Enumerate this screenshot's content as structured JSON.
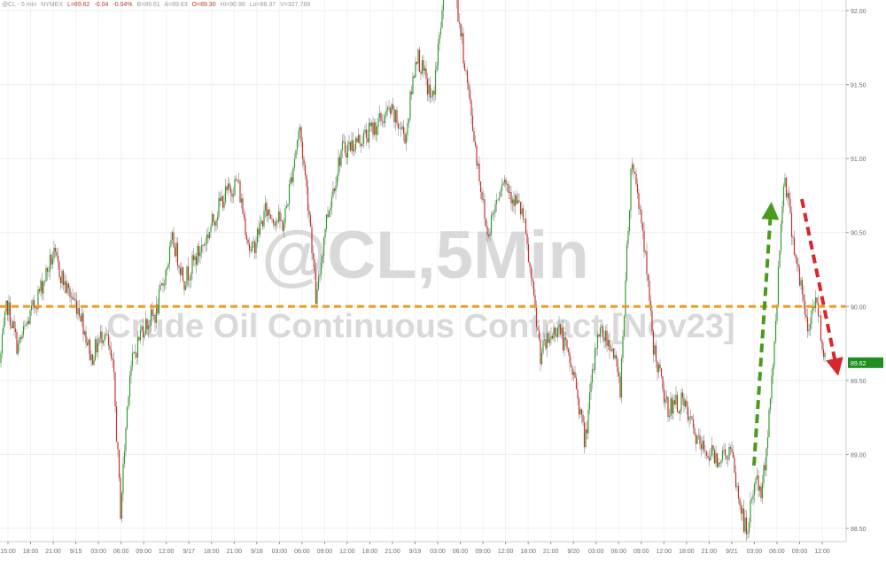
{
  "header": {
    "symbol": "@CL - 5 min",
    "exchange": "NYMEX",
    "last": "L=89.62",
    "change": "-0.04",
    "pct": "-0.04%",
    "bid": "B=89.61",
    "ask": "A=89.63",
    "open": "O=89.30",
    "high": "Hi=90.98",
    "low": "Lo=88.37",
    "volume": "V=327,789"
  },
  "watermark": {
    "title": "@CL,5Min",
    "subtitle": "Crude Oil Continuous Contract [Nov23]"
  },
  "colors": {
    "up": "#2ea02e",
    "down": "#c8322b",
    "wick": "#888888",
    "ref_line": "#f39c1f",
    "arrow_up": "#4a9a1e",
    "arrow_down": "#d9262b",
    "last_tag": "#1f8f1f"
  },
  "chart_data": {
    "type": "candlestick",
    "title": "@CL,5Min",
    "subtitle": "Crude Oil Continuous Contract [Nov23]",
    "ylim": [
      88.3,
      92.5
    ],
    "y_ticks": [
      "88.50",
      "89.00",
      "89.50",
      "90.00",
      "90.50",
      "91.00",
      "91.50",
      "92.00"
    ],
    "x_ticks": [
      "15:00",
      "18:00",
      "21:00",
      "9/15",
      "03:00",
      "06:00",
      "09:00",
      "12:00",
      "9/17",
      "18:00",
      "21:00",
      "9/18",
      "03:00",
      "06:00",
      "09:00",
      "12:00",
      "18:00",
      "21:00",
      "9/19",
      "03:00",
      "06:00",
      "09:00",
      "12:00",
      "18:00",
      "21:00",
      "9/20",
      "03:00",
      "06:00",
      "09:00",
      "12:00",
      "18:00",
      "21:00",
      "9/21",
      "03:00",
      "06:00",
      "09:00",
      "12:00"
    ],
    "reference_line": 90.0,
    "last_price": "89.62",
    "path": [
      [
        0,
        89.62
      ],
      [
        8,
        90.02
      ],
      [
        20,
        89.72
      ],
      [
        35,
        89.95
      ],
      [
        60,
        90.35
      ],
      [
        75,
        90.12
      ],
      [
        90,
        89.98
      ],
      [
        103,
        89.65
      ],
      [
        118,
        89.85
      ],
      [
        128,
        89.55
      ],
      [
        136,
        88.62
      ],
      [
        146,
        89.55
      ],
      [
        160,
        89.85
      ],
      [
        176,
        89.95
      ],
      [
        195,
        90.45
      ],
      [
        208,
        90.18
      ],
      [
        232,
        90.45
      ],
      [
        250,
        90.72
      ],
      [
        268,
        90.85
      ],
      [
        283,
        90.35
      ],
      [
        300,
        90.65
      ],
      [
        320,
        90.55
      ],
      [
        338,
        91.22
      ],
      [
        350,
        90.58
      ],
      [
        357,
        90.02
      ],
      [
        367,
        90.55
      ],
      [
        385,
        91.05
      ],
      [
        412,
        91.15
      ],
      [
        440,
        91.32
      ],
      [
        458,
        91.15
      ],
      [
        470,
        91.72
      ],
      [
        488,
        91.38
      ],
      [
        507,
        92.42
      ],
      [
        520,
        91.85
      ],
      [
        535,
        91.15
      ],
      [
        550,
        90.48
      ],
      [
        567,
        90.88
      ],
      [
        590,
        90.62
      ],
      [
        610,
        89.68
      ],
      [
        630,
        89.88
      ],
      [
        650,
        89.48
      ],
      [
        660,
        89.08
      ],
      [
        675,
        89.85
      ],
      [
        690,
        89.75
      ],
      [
        700,
        89.45
      ],
      [
        713,
        91.02
      ],
      [
        725,
        90.55
      ],
      [
        737,
        89.75
      ],
      [
        752,
        89.32
      ],
      [
        770,
        89.35
      ],
      [
        790,
        89.05
      ],
      [
        810,
        88.98
      ],
      [
        825,
        89.02
      ],
      [
        833,
        88.72
      ],
      [
        843,
        88.45
      ],
      [
        852,
        88.85
      ],
      [
        860,
        88.72
      ],
      [
        872,
        89.55
      ],
      [
        885,
        90.92
      ],
      [
        897,
        90.38
      ],
      [
        912,
        89.82
      ],
      [
        920,
        90.08
      ],
      [
        932,
        89.62
      ]
    ],
    "annotations": [
      {
        "type": "arrow",
        "direction": "up",
        "color": "green"
      },
      {
        "type": "arrow",
        "direction": "down",
        "color": "red"
      }
    ]
  }
}
